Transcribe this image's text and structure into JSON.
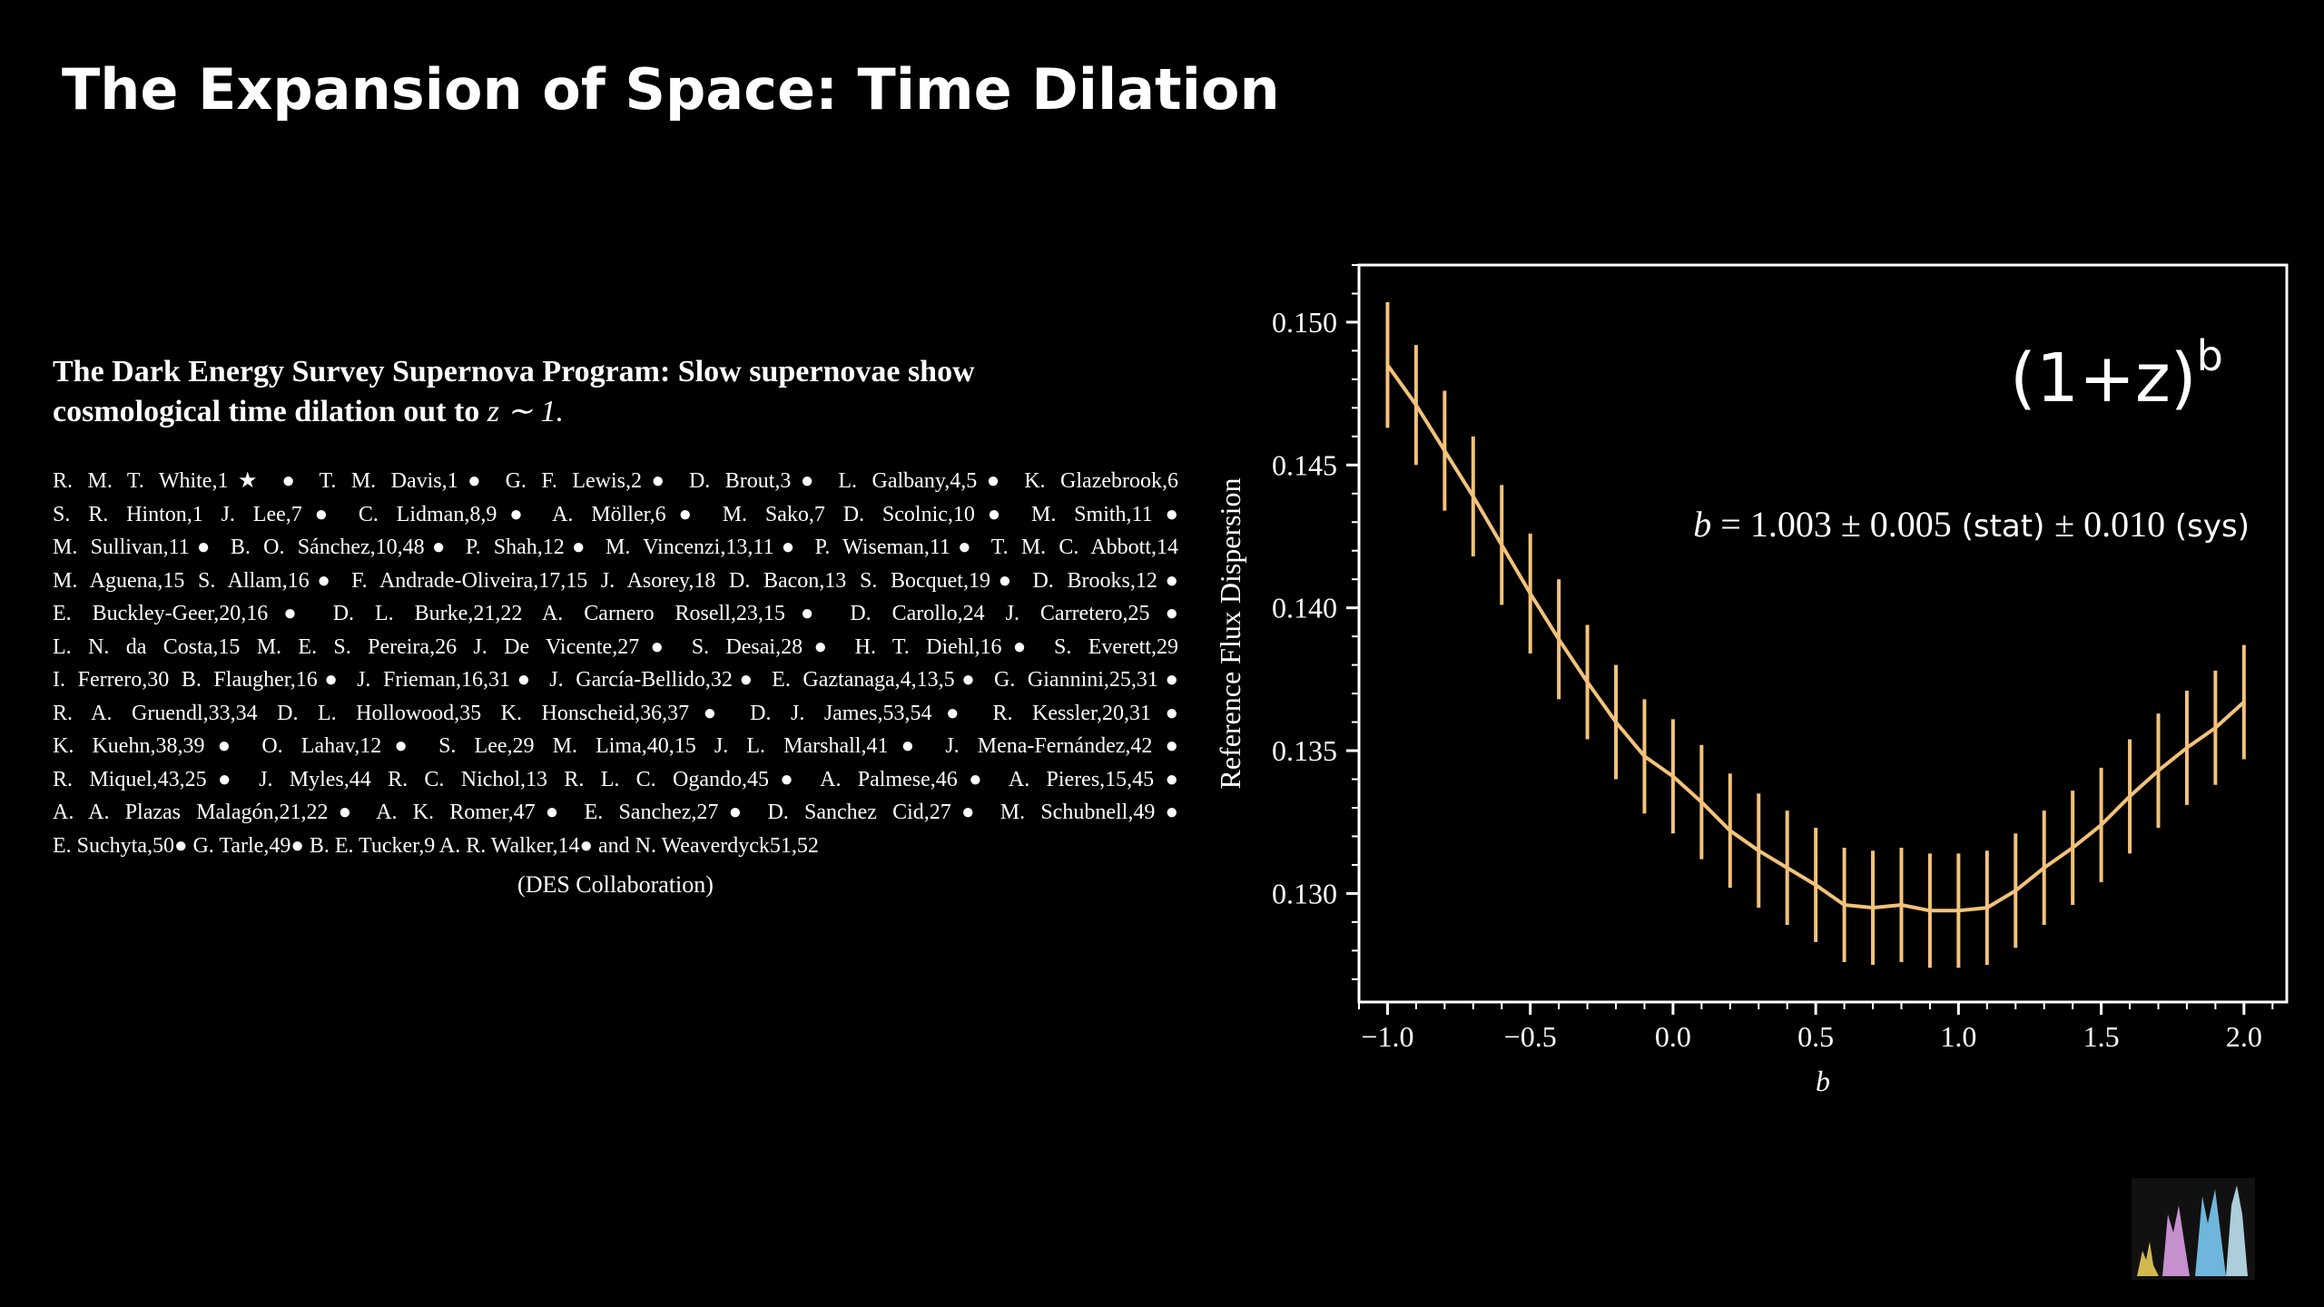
{
  "slide": {
    "title": "The Expansion of Space: Time Dilation"
  },
  "paper": {
    "title_line1": "The Dark Energy Survey Supernova Program: Slow supernovae show",
    "title_line2_prefix": "cosmological time dilation out to ",
    "title_line2_var": "z ∼ 1.",
    "author_lines": [
      "R. M. T. White,1★ ● T. M. Davis,1● G. F. Lewis,2● D. Brout,3● L. Galbany,4,5● K. Glazebrook,6",
      "S. R. Hinton,1 J. Lee,7● C. Lidman,8,9● A. Möller,6● M. Sako,7 D. Scolnic,10● M. Smith,11●",
      "M. Sullivan,11● B. O. Sánchez,10,48● P. Shah,12● M. Vincenzi,13,11● P. Wiseman,11● T. M. C. Abbott,14",
      "M. Aguena,15 S. Allam,16● F. Andrade-Oliveira,17,15 J. Asorey,18 D. Bacon,13 S. Bocquet,19● D. Brooks,12●",
      "E. Buckley-Geer,20,16● D. L. Burke,21,22 A. Carnero Rosell,23,15● D. Carollo,24 J. Carretero,25●",
      "L. N. da Costa,15 M. E. S. Pereira,26 J. De Vicente,27● S. Desai,28● H. T. Diehl,16● S. Everett,29",
      "I. Ferrero,30 B. Flaugher,16● J. Frieman,16,31● J. García-Bellido,32● E. Gaztanaga,4,13,5● G. Giannini,25,31●",
      "R. A. Gruendl,33,34 D. L. Hollowood,35 K. Honscheid,36,37● D. J. James,53,54● R. Kessler,20,31●",
      "K. Kuehn,38,39● O. Lahav,12● S. Lee,29 M. Lima,40,15 J. L. Marshall,41● J. Mena-Fernández,42●",
      "R. Miquel,43,25● J. Myles,44 R. C. Nichol,13 R. L. C. Ogando,45● A. Palmese,46● A. Pieres,15,45●",
      "A. A. Plazas Malagón,21,22● A. K. Romer,47● E. Sanchez,27● D. Sanchez Cid,27● M. Schubnell,49●",
      "E. Suchyta,50● G. Tarle,49● B. E. Tucker,9 A. R. Walker,14● and N. Weaverdyck51,52"
    ],
    "collaboration": "(DES Collaboration)"
  },
  "chart_data": {
    "type": "line",
    "title": "",
    "xlabel": "b",
    "ylabel": "Reference Flux Dispersion",
    "xlim": [
      -1.1,
      2.15
    ],
    "ylim": [
      0.1262,
      0.152
    ],
    "x_ticks": [
      -1.0,
      -0.5,
      0.0,
      0.5,
      1.0,
      1.5,
      2.0
    ],
    "x_tick_labels": [
      "−1.0",
      "−0.5",
      "0.0",
      "0.5",
      "1.0",
      "1.5",
      "2.0"
    ],
    "y_ticks": [
      0.13,
      0.135,
      0.14,
      0.145,
      0.15
    ],
    "y_tick_labels": [
      "0.130",
      "0.135",
      "0.140",
      "0.145",
      "0.150"
    ],
    "series": [
      {
        "x": [
          -1.0,
          -0.9,
          -0.8,
          -0.7,
          -0.6,
          -0.5,
          -0.4,
          -0.3,
          -0.2,
          -0.1,
          0.0,
          0.1,
          0.2,
          0.3,
          0.4,
          0.5,
          0.6,
          0.7,
          0.8,
          0.9,
          1.0,
          1.1,
          1.2,
          1.3,
          1.4,
          1.5,
          1.6,
          1.7,
          1.8,
          1.9,
          2.0
        ],
        "y": [
          0.1485,
          0.1471,
          0.1455,
          0.1439,
          0.1422,
          0.1405,
          0.1389,
          0.1374,
          0.136,
          0.1348,
          0.1341,
          0.1332,
          0.1322,
          0.1315,
          0.1309,
          0.1303,
          0.1296,
          0.1295,
          0.1296,
          0.1294,
          0.1294,
          0.1295,
          0.1301,
          0.1309,
          0.1316,
          0.1324,
          0.1334,
          0.1343,
          0.1351,
          0.1358,
          0.1367
        ],
        "err": [
          0.0022,
          0.0021,
          0.0021,
          0.0021,
          0.0021,
          0.0021,
          0.0021,
          0.002,
          0.002,
          0.002,
          0.002,
          0.002,
          0.002,
          0.002,
          0.002,
          0.002,
          0.002,
          0.002,
          0.002,
          0.002,
          0.002,
          0.002,
          0.002,
          0.002,
          0.002,
          0.002,
          0.002,
          0.002,
          0.002,
          0.002,
          0.002
        ],
        "color": "#f3c27a"
      }
    ],
    "annotations": {
      "formula_base": "(1+z)",
      "formula_exp": "b",
      "result_var": "b",
      "result_value": " = 1.003 ± 0.005",
      "result_stat": " (stat) ",
      "result_sys_value": "± 0.010",
      "result_sys": " (sys)"
    },
    "grid": false,
    "legend": "none",
    "colors": {
      "line": "#f3c27a",
      "axes": "#ffffff",
      "background": "#000000"
    }
  },
  "logo": {
    "colors": [
      "#f4d65a",
      "#e6a6f0",
      "#7fd4ff",
      "#c9efff"
    ]
  }
}
